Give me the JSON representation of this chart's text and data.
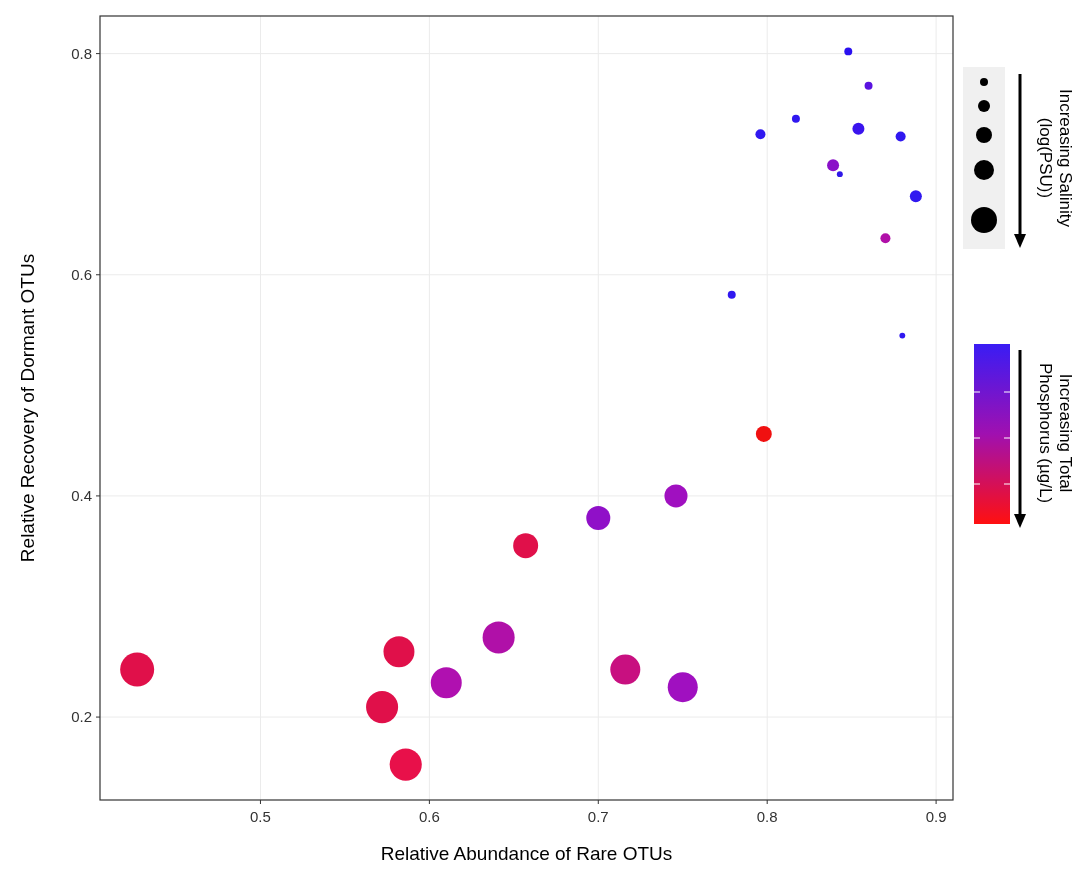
{
  "chart_data": {
    "type": "bubble",
    "xlabel": "Relative Abundance  of Rare OTUs",
    "ylabel": "Relative Recovery of Dormant  OTUs",
    "x": [
      0.848,
      0.86,
      0.817,
      0.796,
      0.854,
      0.879,
      0.839,
      0.843,
      0.888,
      0.87,
      0.779,
      0.88,
      0.798,
      0.746,
      0.7,
      0.657,
      0.641,
      0.582,
      0.61,
      0.572,
      0.586,
      0.716,
      0.75,
      0.427
    ],
    "values": [
      0.802,
      0.771,
      0.741,
      0.727,
      0.732,
      0.725,
      0.699,
      0.691,
      0.671,
      0.633,
      0.582,
      0.545,
      0.456,
      0.4,
      0.38,
      0.355,
      0.272,
      0.259,
      0.231,
      0.209,
      0.157,
      0.243,
      0.227,
      0.243
    ],
    "sizes": [
      0.055,
      0.055,
      0.055,
      0.087,
      0.125,
      0.087,
      0.125,
      0.031,
      0.125,
      0.087,
      0.055,
      0.03,
      0.22,
      0.46,
      0.5,
      0.54,
      0.89,
      0.83,
      0.83,
      0.89,
      0.89,
      0.78,
      0.78,
      1
    ],
    "colors": [
      "#2a10f0",
      "#5a12e0",
      "#3018f0",
      "#3018f0",
      "#3a14ee",
      "#3018f0",
      "#8a10c8",
      "#3018e8",
      "#3018f0",
      "#b010a8",
      "#3018f0",
      "#3018f0",
      "#f01010",
      "#a010c0",
      "#9010c8",
      "#e0104a",
      "#b010a8",
      "#e0104a",
      "#b010b0",
      "#e0104a",
      "#e8104a",
      "#c81080",
      "#a010c0",
      "#e0104a"
    ],
    "xlim": [
      0.405,
      0.91
    ],
    "ylim": [
      0.125,
      0.834
    ],
    "xticks": [
      0.5,
      0.6,
      0.7,
      0.8,
      0.9
    ],
    "yticks": [
      0.2,
      0.4,
      0.6,
      0.8
    ],
    "grid": true,
    "annotations": [
      "Increasing Salinity (log(PSU))",
      "Increasing Total Phosphorus (µg/L)"
    ]
  }
}
